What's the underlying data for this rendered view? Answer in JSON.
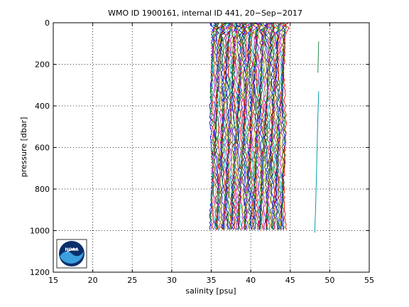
{
  "colors": {
    "background": "#ffffff",
    "axes": "#000000",
    "grid": "#000000",
    "profile_palette": [
      "#0000ff",
      "#008000",
      "#ff0000",
      "#00bfbf",
      "#bf00bf",
      "#bfbf00",
      "#404040"
    ],
    "outlier_cyan": "#00a0b0",
    "outlier_green": "#2e8b57",
    "logo_blue": "#1f5fa8",
    "logo_light": "#3aa0e0",
    "logo_dark": "#0b2f6b"
  },
  "logo": {
    "text": "NOAA"
  },
  "chart_data": {
    "type": "line",
    "title": "WMO ID 1900161, internal ID 441, 20−Sep−2017",
    "xlabel": "salinity [psu]",
    "ylabel": "pressure [dbar]",
    "xlim": [
      15,
      55
    ],
    "ylim": [
      0,
      1200
    ],
    "y_reversed": true,
    "grid": "on (dotted)",
    "xticks": [
      15,
      20,
      25,
      30,
      35,
      40,
      45,
      50,
      55
    ],
    "yticks": [
      0,
      200,
      400,
      600,
      800,
      1000,
      1200
    ],
    "x_tick_labels": [
      "15",
      "20",
      "25",
      "30",
      "35",
      "40",
      "45",
      "50",
      "55"
    ],
    "y_tick_labels": [
      "0",
      "200",
      "400",
      "600",
      "800",
      "1000",
      "1200"
    ],
    "profile_family": {
      "description_of_data": "many salinity profiles offset successively by ~0.1 psu",
      "profile_count": 94,
      "first_offset_psu": 35.0,
      "last_offset_psu": 44.3,
      "pressure_range": [
        0,
        1000
      ]
    },
    "series": [
      {
        "x": [
          48.6,
          48.5,
          48.4,
          48.3,
          48.2,
          48.1
        ],
        "y": [
          330,
          450,
          600,
          760,
          900,
          1010
        ]
      },
      {
        "x": [
          48.6,
          48.5
        ],
        "y": [
          90,
          240
        ]
      }
    ]
  }
}
